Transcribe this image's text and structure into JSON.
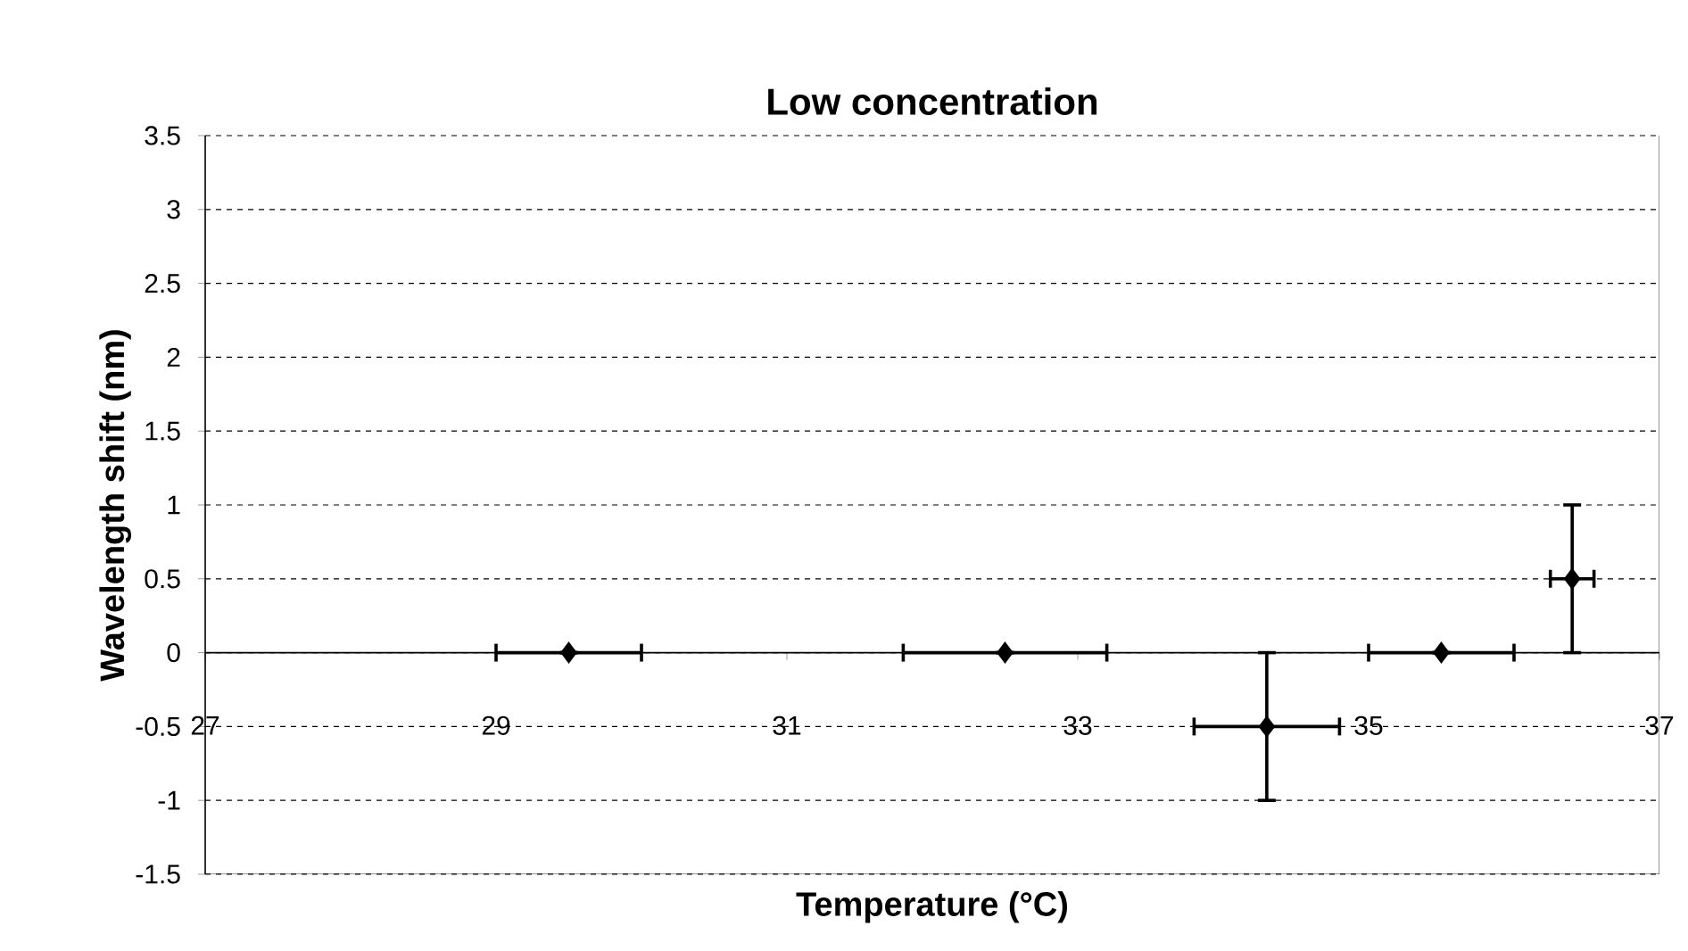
{
  "chart_data": {
    "type": "scatter",
    "title": "Low concentration",
    "xlabel": "Temperature (°C)",
    "ylabel": "Wavelength shift (nm)",
    "x": [
      29.5,
      32.5,
      34.3,
      35.5,
      36.4
    ],
    "values": [
      0,
      0,
      -0.5,
      0,
      0.5
    ],
    "errors": [
      null,
      null,
      0.5,
      null,
      0.5
    ],
    "xerrors": [
      0.5,
      0.7,
      0.5,
      0.5,
      0.15
    ],
    "color": "#000000",
    "marker": "diamond",
    "xlim": [
      27,
      37
    ],
    "xticks": [
      27,
      29,
      31,
      33,
      35,
      37
    ],
    "ylim": [
      -1.5,
      3.5
    ],
    "yticks": [
      -1.5,
      -1,
      -0.5,
      0,
      0.5,
      1,
      1.5,
      2,
      2.5,
      3,
      3.5
    ],
    "grid": "y"
  }
}
